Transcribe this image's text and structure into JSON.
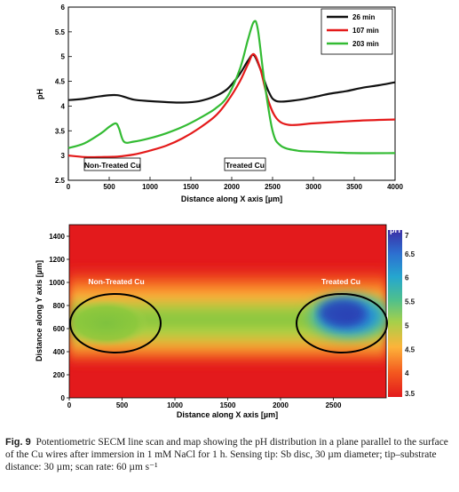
{
  "chart_data": [
    {
      "type": "line",
      "xlabel": "Distance along X axis [µm]",
      "ylabel": "pH",
      "xlim": [
        0,
        4000
      ],
      "ylim": [
        2.5,
        6
      ],
      "xticks": [
        "0",
        "500",
        "1000",
        "1500",
        "2000",
        "2500",
        "3000",
        "3500",
        "4000"
      ],
      "yticks": [
        "2.5",
        "3",
        "3.5",
        "4",
        "4.5",
        "5",
        "5.5",
        "6"
      ],
      "legend_placement": "top-right",
      "annotations": [
        "Non-Treated Cu",
        "Treated Cu"
      ],
      "series": [
        {
          "name": "26 min",
          "color": "#111111",
          "x": [
            0,
            200,
            400,
            600,
            800,
            1000,
            1200,
            1400,
            1600,
            1800,
            1950,
            2100,
            2200,
            2270,
            2350,
            2450,
            2550,
            2800,
            3000,
            3200,
            3400,
            3600,
            3800,
            4000
          ],
          "y": [
            4.12,
            4.15,
            4.2,
            4.22,
            4.13,
            4.1,
            4.08,
            4.07,
            4.1,
            4.2,
            4.35,
            4.65,
            4.92,
            5.03,
            4.75,
            4.3,
            4.1,
            4.12,
            4.18,
            4.25,
            4.3,
            4.37,
            4.42,
            4.48
          ]
        },
        {
          "name": "107 min",
          "color": "#e41a1a",
          "x": [
            0,
            200,
            400,
            600,
            800,
            1000,
            1200,
            1400,
            1600,
            1800,
            1950,
            2100,
            2200,
            2270,
            2350,
            2450,
            2550,
            2700,
            3000,
            3500,
            4000
          ],
          "y": [
            3.0,
            2.97,
            2.97,
            2.98,
            3.02,
            3.1,
            3.2,
            3.35,
            3.55,
            3.8,
            4.1,
            4.5,
            4.85,
            5.05,
            4.75,
            4.1,
            3.75,
            3.62,
            3.65,
            3.7,
            3.73
          ]
        },
        {
          "name": "203 min",
          "color": "#33bb33",
          "x": [
            0,
            200,
            400,
            500,
            580,
            620,
            680,
            800,
            1000,
            1200,
            1400,
            1600,
            1800,
            1950,
            2100,
            2200,
            2270,
            2320,
            2400,
            2500,
            2600,
            2800,
            3000,
            3500,
            4000
          ],
          "y": [
            3.15,
            3.25,
            3.45,
            3.58,
            3.65,
            3.55,
            3.28,
            3.28,
            3.35,
            3.45,
            3.58,
            3.75,
            3.95,
            4.2,
            4.75,
            5.35,
            5.7,
            5.55,
            4.5,
            3.5,
            3.2,
            3.1,
            3.08,
            3.05,
            3.05
          ]
        }
      ]
    },
    {
      "type": "heatmap",
      "xlabel": "Distance along X axis [µm]",
      "ylabel": "Distance along Y axis [µm]",
      "xlim": [
        0,
        3000
      ],
      "ylim": [
        0,
        1500
      ],
      "xticks": [
        "0",
        "500",
        "1000",
        "1500",
        "2000",
        "2500"
      ],
      "yticks": [
        "0",
        "200",
        "400",
        "600",
        "800",
        "1000",
        "1200",
        "1400"
      ],
      "colorbar_label": "pH",
      "colorbar_range": [
        3.5,
        7
      ],
      "colorbar_ticks": [
        "3.5",
        "4",
        "4.5",
        "5",
        "5.5",
        "6",
        "6.5",
        "7"
      ],
      "annotations": [
        "Non-Treated Cu",
        "Treated Cu"
      ],
      "regions": [
        {
          "label": "Non-Treated Cu",
          "center_x": 400,
          "center_y": 620,
          "semi_axis_x": 430,
          "semi_axis_y": 270
        },
        {
          "label": "Treated Cu",
          "center_x": 2550,
          "center_y": 620,
          "semi_axis_x": 430,
          "semi_axis_y": 270
        }
      ],
      "band": {
        "y_center": 620,
        "note": "central horizontal band of elevated pH"
      },
      "peak": {
        "x": 2500,
        "y": 650,
        "value": 6.8
      }
    }
  ],
  "caption": {
    "label": "Fig. 9",
    "text": "Potentiometric SECM line scan and map showing the pH distribution in a plane parallel to the surface of the Cu wires after immersion in 1 mM NaCl for 1 h. Sensing tip: Sb disc, 30 µm diameter; tip–substrate distance: 30 µm; scan rate: 60 µm s⁻¹"
  },
  "colors": {
    "low": "#e31a1c",
    "mid_low": "#fdae3a",
    "mid": "#8ac83c",
    "high": "#2c4fbf"
  }
}
